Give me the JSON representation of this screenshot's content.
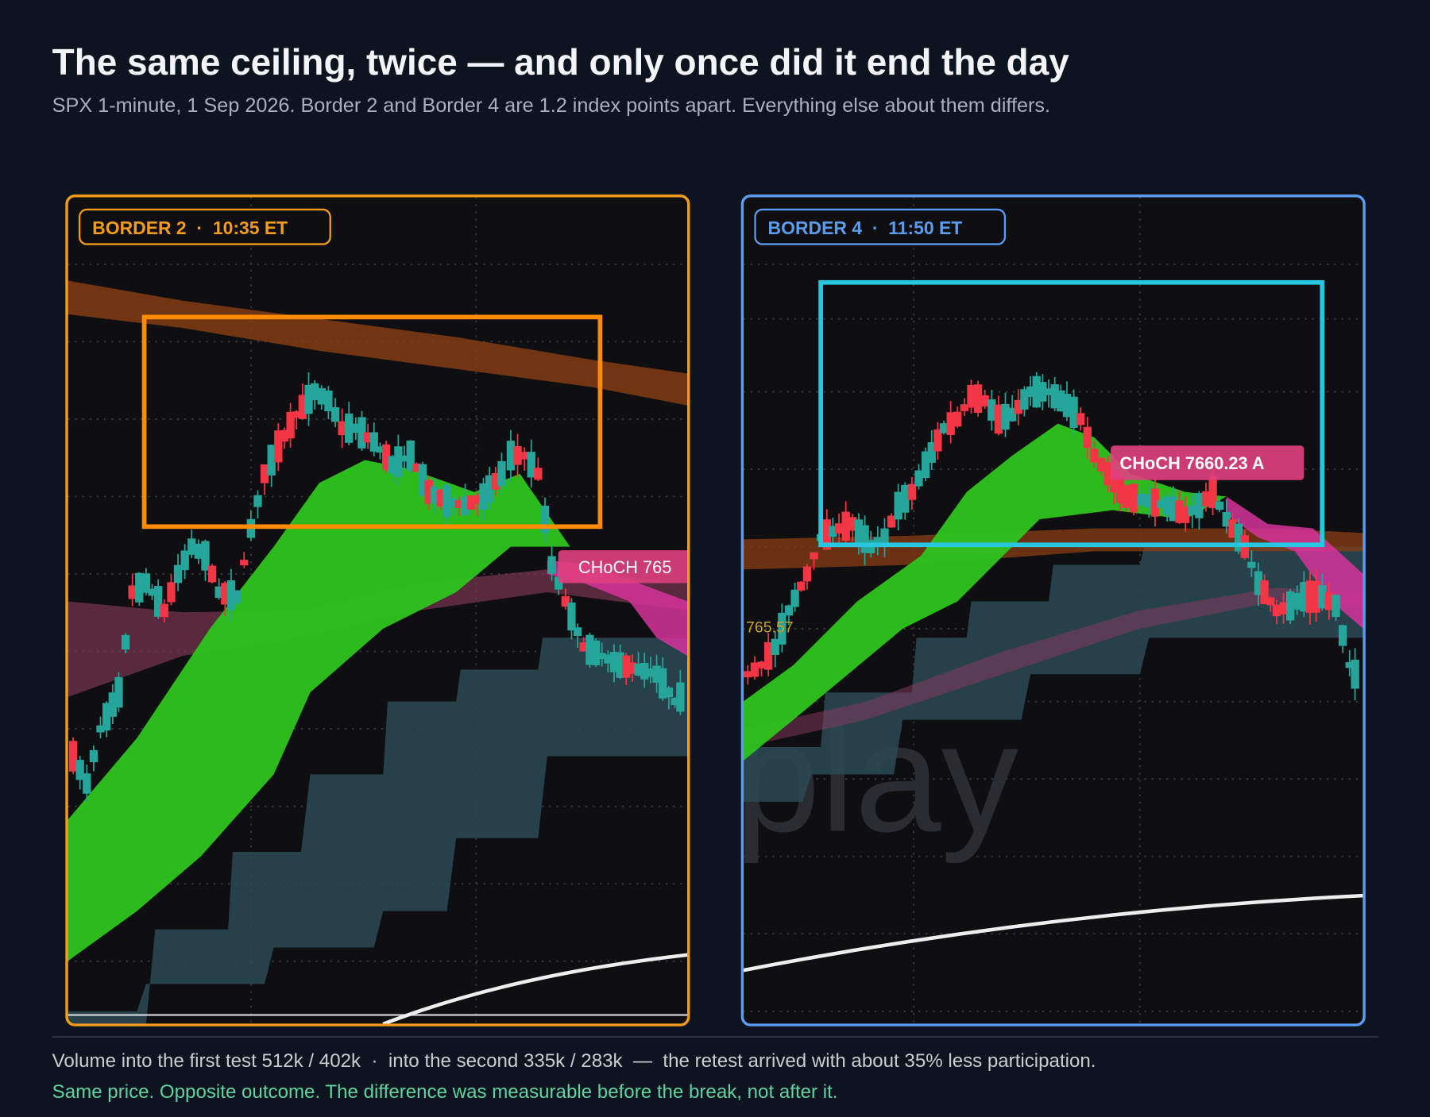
{
  "header": {
    "title": "The same ceiling, twice — and only once did it end the day",
    "subtitle": "SPX 1-minute, 1 Sep 2026. Border 2 and Border 4 are 1.2 index points apart. Everything else about them differs."
  },
  "panels": [
    {
      "label": "BORDER 2  ·  10:35 ET",
      "annotations": [
        "CHoCH 765"
      ]
    },
    {
      "label": "BORDER 4  ·  11:50 ET",
      "annotations": [
        "CHoCH 7660.23 A",
        "765.57"
      ],
      "watermark": "play"
    }
  ],
  "footer": {
    "line1": "Volume into the first test 512k / 402k  ·  into the second 335k / 283k  —  the retest arrived with about 35% less participation.",
    "line2": "Same price. Opposite outcome. The difference was measurable before the break, not after it."
  }
}
